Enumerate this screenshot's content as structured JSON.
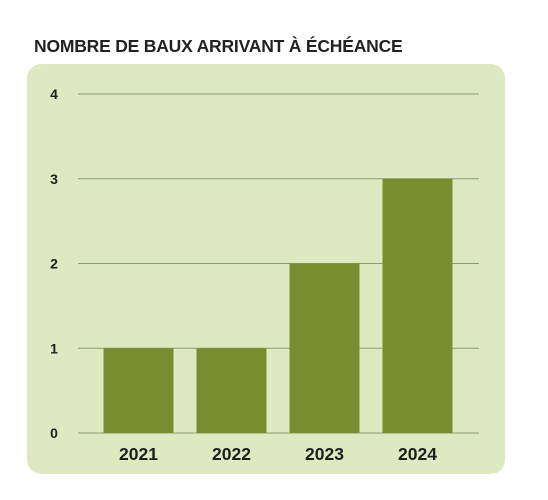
{
  "title": "NOMBRE DE BAUX ARRIVANT À ÉCHÉANCE",
  "colors": {
    "panel": "#dfe9c1",
    "bar": "#778d30",
    "grid": "#8e9a73"
  },
  "chart_data": {
    "type": "bar",
    "title": "NOMBRE DE BAUX ARRIVANT À ÉCHÉANCE",
    "categories": [
      "2021",
      "2022",
      "2023",
      "2024"
    ],
    "values": [
      1,
      1,
      2,
      3
    ],
    "y_ticks": [
      "0",
      "1",
      "2",
      "3",
      "4"
    ],
    "ylim": [
      0,
      4
    ],
    "grid": true,
    "legend": false
  }
}
